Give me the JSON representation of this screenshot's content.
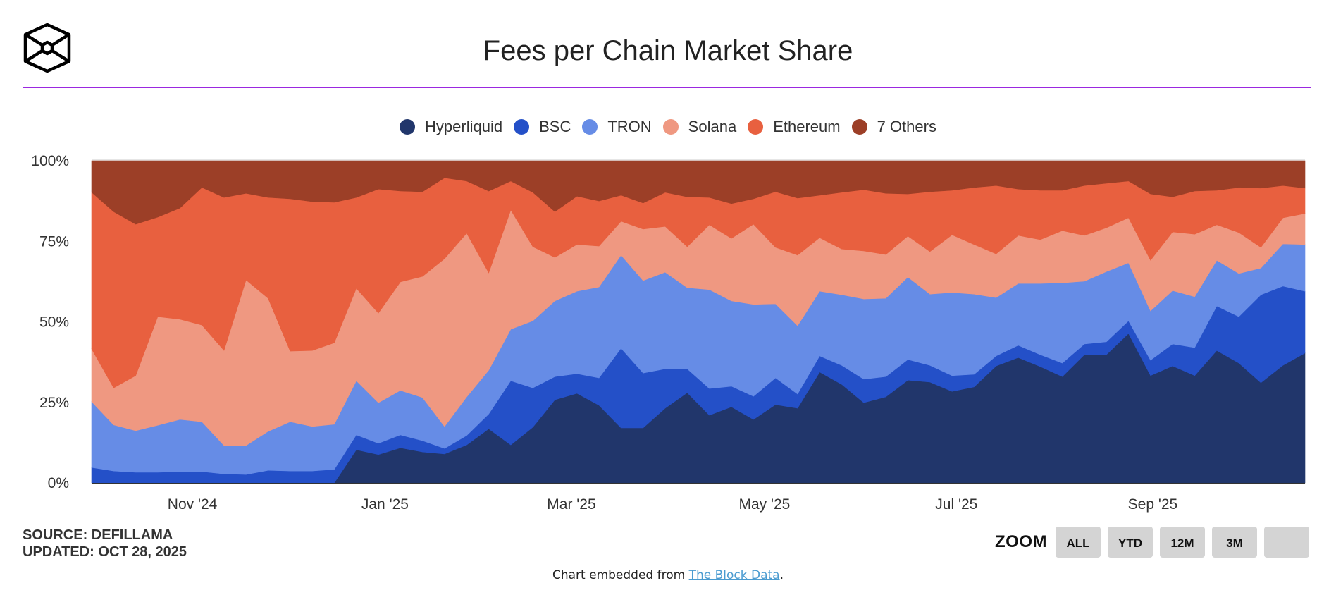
{
  "header": {
    "title": "Fees per Chain Market Share",
    "logo": "the-block-logo",
    "accent_color": "#9b28e0"
  },
  "legend": [
    {
      "name": "Hyperliquid",
      "color": "#21366b"
    },
    {
      "name": "BSC",
      "color": "#2450c8"
    },
    {
      "name": "TRON",
      "color": "#668ce6"
    },
    {
      "name": "Solana",
      "color": "#ef9881"
    },
    {
      "name": "Ethereum",
      "color": "#e8603f"
    },
    {
      "name": "7 Others",
      "color": "#9c3f27"
    }
  ],
  "chart_data": {
    "type": "area",
    "stacking": "percent",
    "title": "Fees per Chain Market Share",
    "xlabel": "",
    "ylabel": "",
    "ylim": [
      0,
      100
    ],
    "y_ticks": [
      "0%",
      "25%",
      "50%",
      "75%",
      "100%"
    ],
    "y_tick_values": [
      0,
      25,
      50,
      75,
      100
    ],
    "x_ticks": [
      {
        "label": "Nov '24",
        "index": 4.57
      },
      {
        "label": "Jan '25",
        "index": 13.3
      },
      {
        "label": "Mar '25",
        "index": 21.75
      },
      {
        "label": "May '25",
        "index": 30.5
      },
      {
        "label": "Jul '25",
        "index": 39.2
      },
      {
        "label": "Sep '25",
        "index": 48.1
      }
    ],
    "x_frequency": "weekly",
    "legend_position": "top-center",
    "cumulative_tops": {
      "Hyperliquid": [
        0,
        0,
        0,
        0,
        0,
        0,
        0,
        0,
        0,
        0,
        0,
        0,
        10.3,
        8.8,
        10.9,
        9.6,
        9.0,
        11.8,
        16.8,
        11.8,
        17.3,
        25.8,
        27.8,
        24.1,
        17.1,
        17.1,
        23.2,
        28,
        21,
        23.6,
        19.7,
        24.3,
        23.2,
        34.4,
        30.6,
        24.9,
        26.7,
        31.9,
        31.3,
        28.4,
        29.8,
        36.3,
        38.9,
        36.1,
        33,
        39.8,
        39.8,
        46.4,
        33.3,
        36.3,
        33.3,
        41.1,
        37.2,
        31.1,
        36.5,
        40.3
      ],
      "BSC": [
        4.8,
        3.7,
        3.3,
        3.3,
        3.5,
        3.5,
        2.8,
        2.6,
        3.9,
        3.7,
        3.7,
        4.2,
        14.9,
        12.3,
        14.9,
        13.1,
        10.7,
        14.7,
        21.4,
        31.7,
        29.5,
        33,
        33.9,
        32.6,
        41.8,
        34.1,
        35.4,
        35.4,
        29.3,
        30,
        26.9,
        32.6,
        27.6,
        39.4,
        36.5,
        32.2,
        33,
        38.3,
        36.5,
        33.3,
        33.7,
        39.4,
        42.7,
        39.8,
        37.2,
        43.1,
        43.8,
        50.3,
        38.1,
        43.1,
        42,
        54.9,
        51.6,
        58.4,
        61.1,
        59.5
      ],
      "TRON": [
        25.2,
        18,
        16.2,
        17.9,
        19.7,
        19,
        11.6,
        11.6,
        16,
        19,
        17.5,
        18.2,
        31.7,
        24.9,
        28.7,
        26.5,
        17.5,
        26.7,
        35,
        47.7,
        50.3,
        56.5,
        59.5,
        60.8,
        70.7,
        62.8,
        65.4,
        60.6,
        60,
        56.5,
        55.4,
        55.6,
        48.8,
        59.5,
        58.4,
        57.1,
        57.3,
        63.9,
        58.6,
        59.1,
        58.6,
        57.5,
        61.9,
        61.9,
        62.1,
        62.6,
        65.6,
        68.3,
        53.4,
        59.7,
        57.8,
        69.1,
        65,
        66.7,
        74.2,
        74
      ],
      "Solana": [
        41.6,
        29.5,
        33.3,
        51.6,
        50.8,
        49,
        41.1,
        63,
        57.3,
        40.9,
        41.1,
        43.5,
        60.4,
        52.7,
        62.4,
        64.1,
        69.6,
        77.5,
        65.2,
        84.7,
        73.3,
        70,
        74,
        73.5,
        81.2,
        78.8,
        79.6,
        73.3,
        80.1,
        75.9,
        80.3,
        73.1,
        70.7,
        76.1,
        72.6,
        72,
        70.9,
        76.6,
        71.8,
        77,
        74,
        71.1,
        76.8,
        75.5,
        78.3,
        76.8,
        79.2,
        82.3,
        69.1,
        77.9,
        77.2,
        80.1,
        77.7,
        73.1,
        82.3,
        83.6
      ],
      "Ethereum": [
        90.2,
        84.2,
        80.3,
        82.5,
        85.3,
        91.7,
        88.6,
        89.9,
        88.6,
        88.2,
        87.3,
        87.1,
        88.6,
        91.2,
        90.6,
        90.4,
        94.7,
        93.7,
        90.6,
        93.7,
        90.2,
        84.2,
        89,
        87.5,
        89.3,
        86.9,
        90.2,
        88.8,
        88.6,
        86.7,
        88.2,
        90.4,
        88.4,
        89.3,
        90.2,
        91,
        89.9,
        89.7,
        90.4,
        90.8,
        91.7,
        92.3,
        91.2,
        90.8,
        90.8,
        92.3,
        93,
        93.7,
        89.7,
        88.8,
        90.6,
        90.8,
        91.7,
        91.5,
        92.3,
        91.5
      ],
      "7 Others": [
        100,
        100,
        100,
        100,
        100,
        100,
        100,
        100,
        100,
        100,
        100,
        100,
        100,
        100,
        100,
        100,
        100,
        100,
        100,
        100,
        100,
        100,
        100,
        100,
        100,
        100,
        100,
        100,
        100,
        100,
        100,
        100,
        100,
        100,
        100,
        100,
        100,
        100,
        100,
        100,
        100,
        100,
        100,
        100,
        100,
        100,
        100,
        100,
        100,
        100,
        100,
        100,
        100,
        100,
        100,
        100
      ]
    }
  },
  "footer": {
    "source": "SOURCE: DEFILLAMA",
    "updated": "UPDATED: OCT 28, 2025",
    "zoom_label": "ZOOM",
    "zoom_buttons": [
      "ALL",
      "YTD",
      "12M",
      "3M",
      ""
    ],
    "embed_prefix": "Chart embedded from ",
    "embed_link": "The Block Data",
    "embed_suffix": "."
  }
}
